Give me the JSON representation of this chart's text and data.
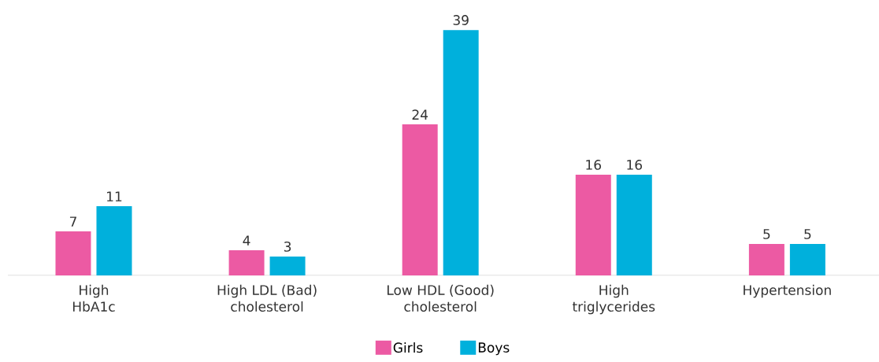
{
  "chart_data": {
    "type": "bar",
    "categories": [
      "High HbA1c",
      "High LDL (Bad) cholesterol",
      "Low HDL (Good) cholesterol",
      "High triglycerides",
      "Hypertension"
    ],
    "series": [
      {
        "name": "Girls",
        "color": "#ec5aa3",
        "values": [
          7,
          4,
          24,
          16,
          5
        ]
      },
      {
        "name": "Boys",
        "color": "#00b0dc",
        "values": [
          11,
          3,
          39,
          16,
          5
        ]
      }
    ],
    "data_labels": true,
    "legend": "bottom"
  }
}
